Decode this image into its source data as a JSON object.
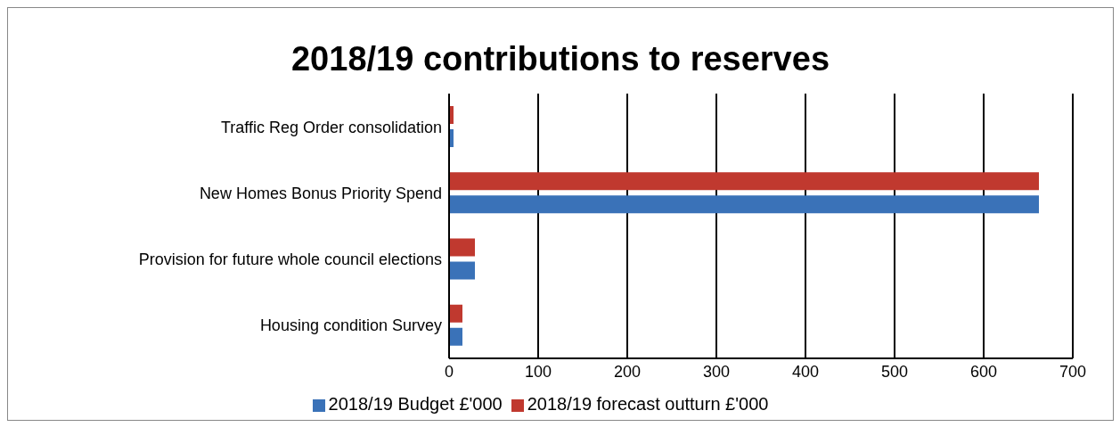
{
  "chart_data": {
    "type": "bar",
    "orientation": "horizontal",
    "title": "2018/19 contributions to reserves",
    "categories": [
      "Traffic Reg Order consolidation",
      "New Homes Bonus Priority Spend",
      "Provision for future whole council elections",
      "Housing condition Survey"
    ],
    "series": [
      {
        "name": "2018/19 forecast outturn £'000",
        "color": "#c0392f",
        "values": [
          5,
          662,
          29,
          15
        ]
      },
      {
        "name": "2018/19 Budget £'000",
        "color": "#3a72b8",
        "values": [
          5,
          662,
          29,
          15
        ]
      }
    ],
    "xlim": [
      0,
      700
    ],
    "xticks": [
      0,
      100,
      200,
      300,
      400,
      500,
      600,
      700
    ],
    "grid": "x",
    "legend": "bottom"
  }
}
